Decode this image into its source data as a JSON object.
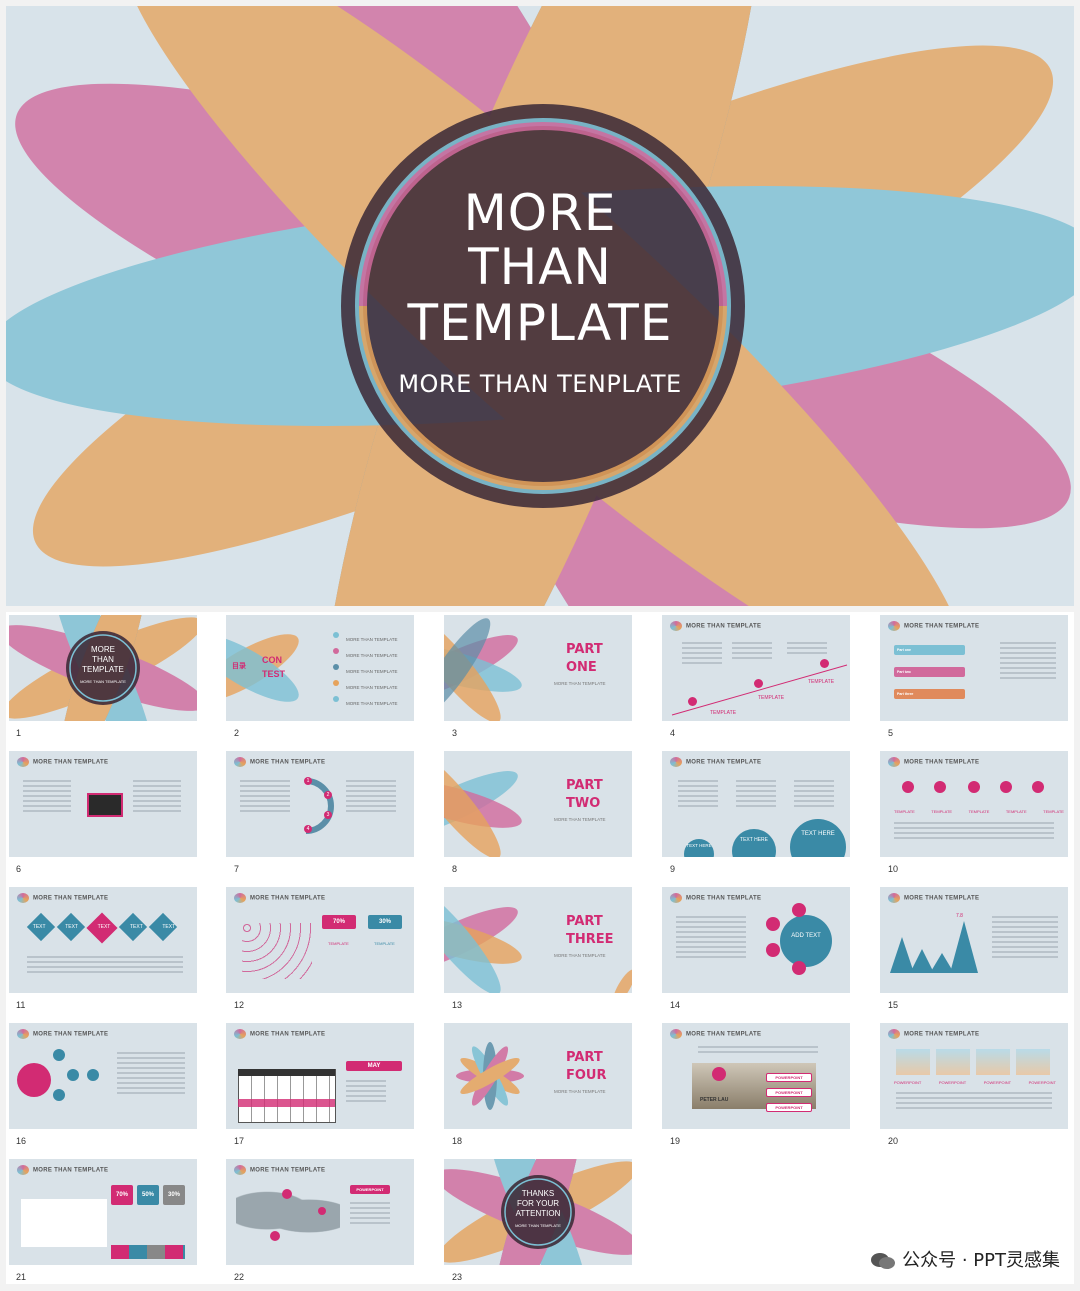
{
  "hero": {
    "title_line1": "MORE",
    "title_line2": "THAN",
    "title_line3": "TEMPLATE",
    "subtitle": "MORE THAN TENPLATE"
  },
  "slides": [
    {
      "num": "1",
      "circle_lines": [
        "MORE",
        "THAN",
        "TEMPLATE"
      ],
      "circle_sub": "MORE THAN TEMPLATE"
    },
    {
      "num": "2",
      "label_a": "目录",
      "label_b": "CON",
      "label_c": "TEST",
      "items": [
        "MORE THAN TEMPLATE",
        "MORE THAN TEMPLATE",
        "MORE THAN TEMPLATE",
        "MORE THAN TEMPLATE",
        "MORE THAN TEMPLATE"
      ]
    },
    {
      "num": "3",
      "part": "PART",
      "part2": "ONE",
      "sub": "MORE THAN TEMPLATE"
    },
    {
      "num": "4",
      "header": "MORE THAN TEMPLATE",
      "labels": [
        "TEMPLATE",
        "TEMPLATE",
        "TEMPLATE"
      ]
    },
    {
      "num": "5",
      "header": "MORE THAN TEMPLATE",
      "bars": [
        "Part one",
        "Part two",
        "Part three"
      ]
    },
    {
      "num": "6",
      "header": "MORE THAN TEMPLATE"
    },
    {
      "num": "7",
      "header": "MORE THAN TEMPLATE",
      "steps": [
        "1",
        "2",
        "3",
        "4"
      ]
    },
    {
      "num": "8",
      "part": "PART",
      "part2": "TWO",
      "sub": "MORE THAN TEMPLATE"
    },
    {
      "num": "9",
      "header": "MORE THAN TEMPLATE",
      "circles": [
        "TEXT HERE",
        "TEXT HERE",
        "TEXT HERE"
      ]
    },
    {
      "num": "10",
      "header": "MORE THAN TEMPLATE",
      "labels": [
        "TEMPLATE",
        "TEMPLATE",
        "TEMPLATE",
        "TEMPLATE",
        "TEMPLATE"
      ]
    },
    {
      "num": "11",
      "header": "MORE THAN TEMPLATE",
      "diamonds": [
        "TEXT",
        "TEXT",
        "TEXT",
        "TEXT",
        "TEXT"
      ]
    },
    {
      "num": "12",
      "header": "MORE THAN TEMPLATE",
      "pct_a": "70%",
      "pct_b": "30%",
      "lbl": "TEMPLATE"
    },
    {
      "num": "13",
      "part": "PART",
      "part2": "THREE",
      "sub": "MORE THAN TEMPLATE"
    },
    {
      "num": "14",
      "header": "MORE THAN TEMPLATE",
      "center": "ADD TEXT"
    },
    {
      "num": "15",
      "header": "MORE THAN TEMPLATE",
      "value": "7.8"
    },
    {
      "num": "16",
      "header": "MORE THAN TEMPLATE"
    },
    {
      "num": "17",
      "header": "MORE THAN TEMPLATE",
      "month": "MAY"
    },
    {
      "num": "18",
      "part": "PART",
      "part2": "FOUR",
      "sub": "MORE THAN TEMPLATE"
    },
    {
      "num": "19",
      "header": "MORE THAN TEMPLATE",
      "name": "PETER LAU",
      "tags": [
        "POWERPOINT",
        "POWERPOINT",
        "POWERPOINT"
      ]
    },
    {
      "num": "20",
      "header": "MORE THAN TEMPLATE",
      "labels": [
        "POWERPOINT",
        "POWERPOINT",
        "POWERPOINT",
        "POWERPOINT"
      ]
    },
    {
      "num": "21",
      "header": "MORE THAN TEMPLATE",
      "pcts": [
        "70%",
        "50%",
        "30%"
      ]
    },
    {
      "num": "22",
      "header": "MORE THAN TEMPLATE",
      "tag": "POWERPOINT"
    },
    {
      "num": "23",
      "circle_lines": [
        "THANKS",
        "FOR YOUR",
        "ATTENTION"
      ],
      "circle_sub": "MORE THAN TEMPLATE"
    }
  ],
  "watermark": "公众号 · PPT灵感集",
  "colors": {
    "pink": "#d16a9c",
    "orange": "#e6a35c",
    "blue": "#7cc0d4",
    "steel": "#5b8fa8",
    "dark": "#4a3340",
    "accent": "#d22b73",
    "teal": "#3a8aa6"
  }
}
